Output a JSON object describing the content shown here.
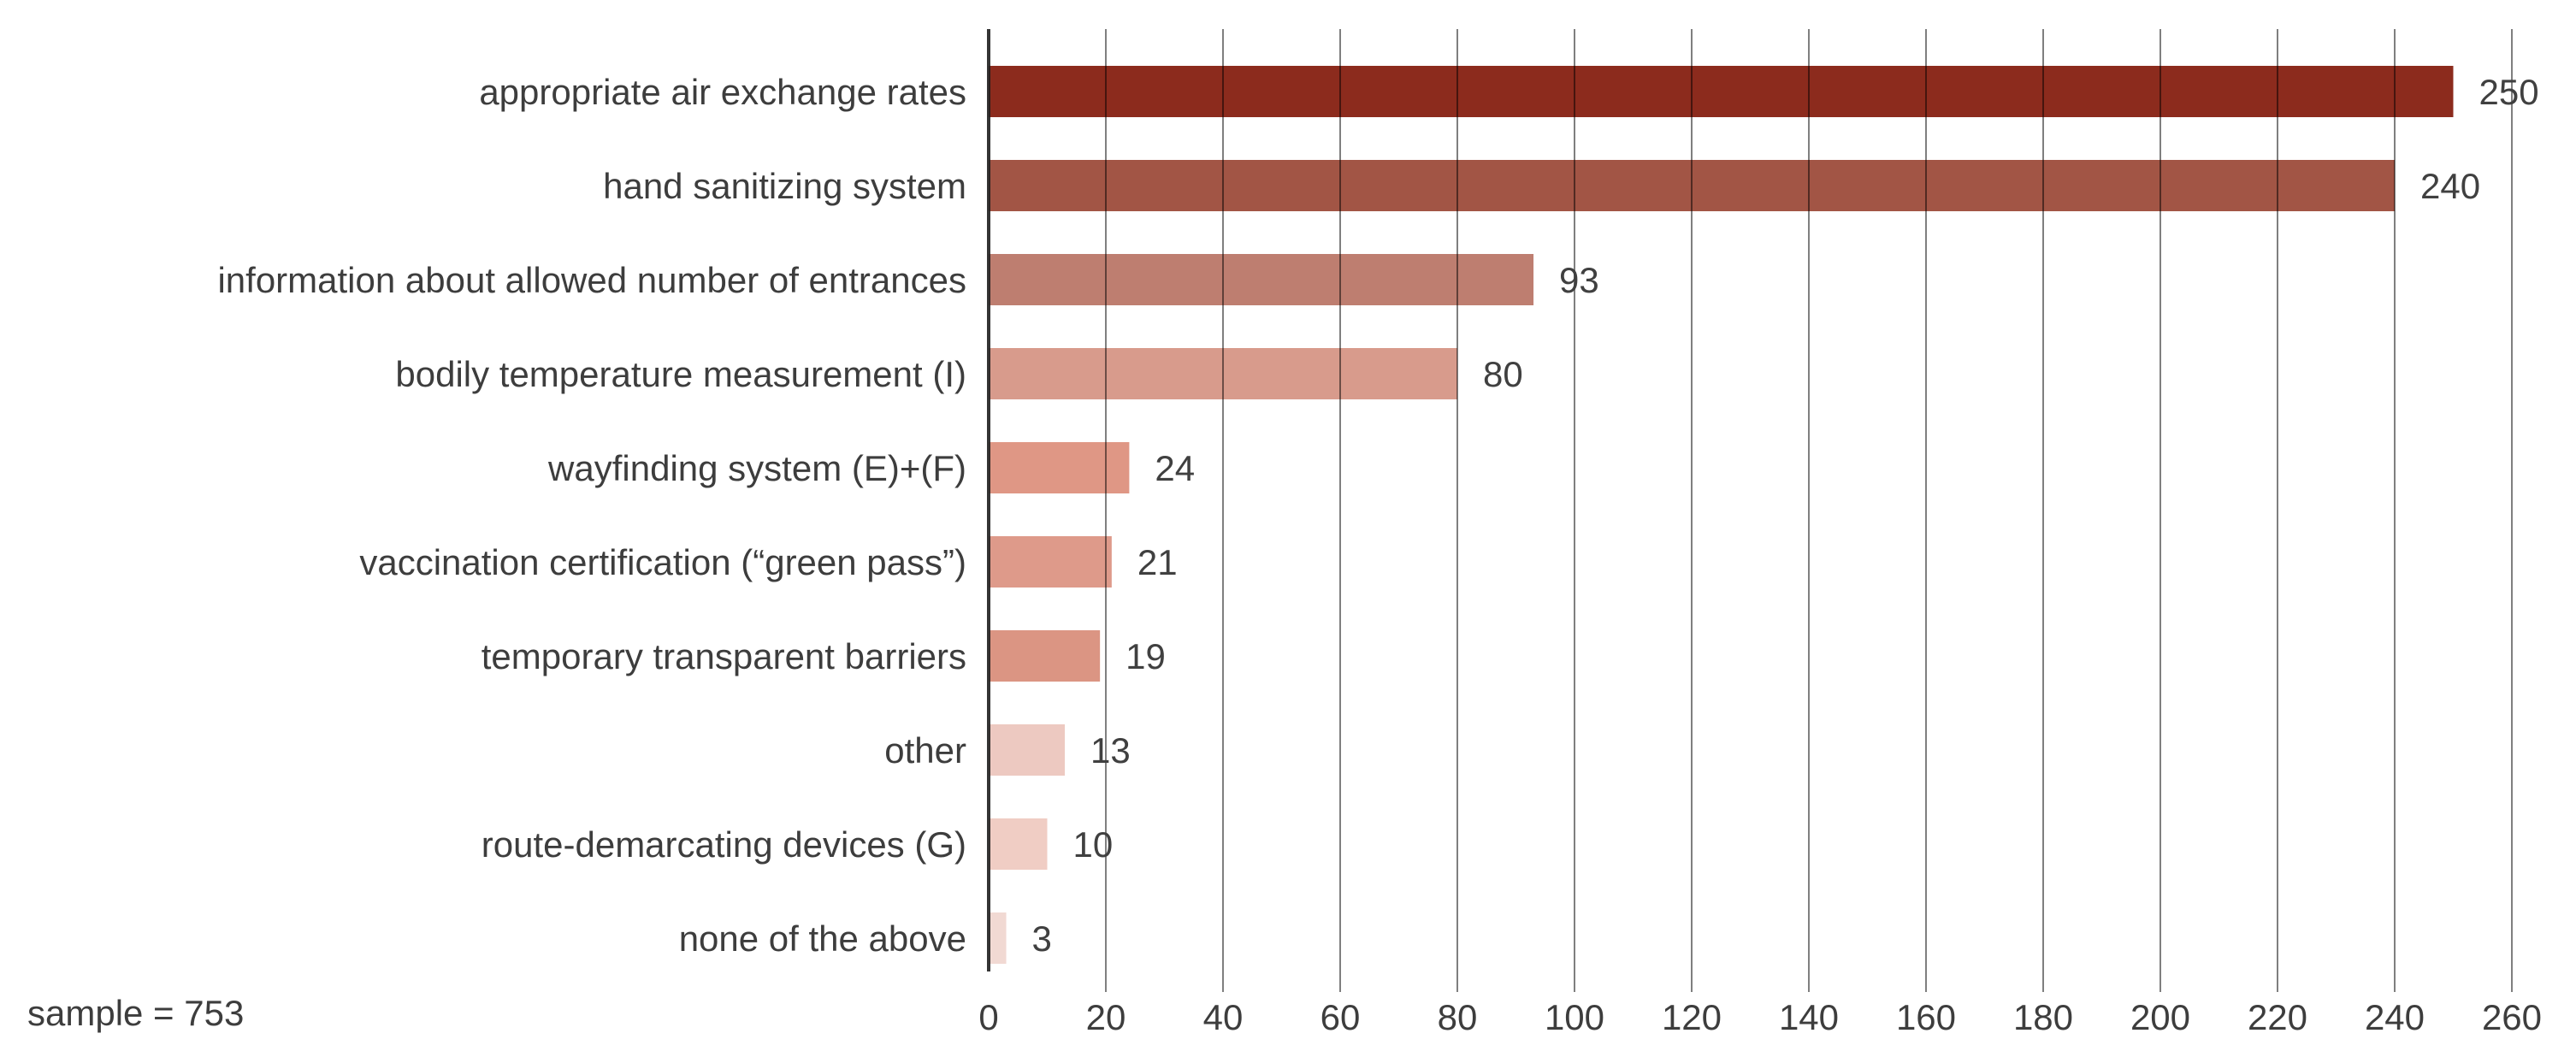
{
  "chart_data": {
    "type": "bar",
    "orientation": "horizontal",
    "title": "",
    "categories": [
      "appropriate air exchange rates",
      "hand sanitizing system",
      "information about allowed number of entrances",
      "bodily temperature measurement (I)",
      "wayfinding system (E)+(F)",
      "vaccination certification (“green pass”)",
      "temporary transparent barriers",
      "other",
      "route-demarcating devices (G)",
      "none of the above"
    ],
    "values": [
      250,
      240,
      93,
      80,
      24,
      21,
      19,
      13,
      10,
      3
    ],
    "bar_colors": [
      "#8C2B1D",
      "#A25545",
      "#BE7E70",
      "#D89B8C",
      "#DF9785",
      "#DE9A8A",
      "#DB9583",
      "#EDC9C1",
      "#F0CDC4",
      "#F1D9D3"
    ],
    "xlim": [
      0,
      260
    ],
    "x_ticks": [
      0,
      20,
      40,
      60,
      80,
      100,
      120,
      140,
      160,
      180,
      200,
      220,
      240,
      260
    ],
    "grid": "vertical-gridlines-over-bars",
    "legend": "none",
    "value_labels_shown": true,
    "note": "sample = 753"
  },
  "colors": {
    "text_color": "#3d3d3d",
    "value_label_color": "#404040",
    "gridline_color": "#000000",
    "axis_color": "#1f1f1f",
    "background": "#ffffff"
  }
}
